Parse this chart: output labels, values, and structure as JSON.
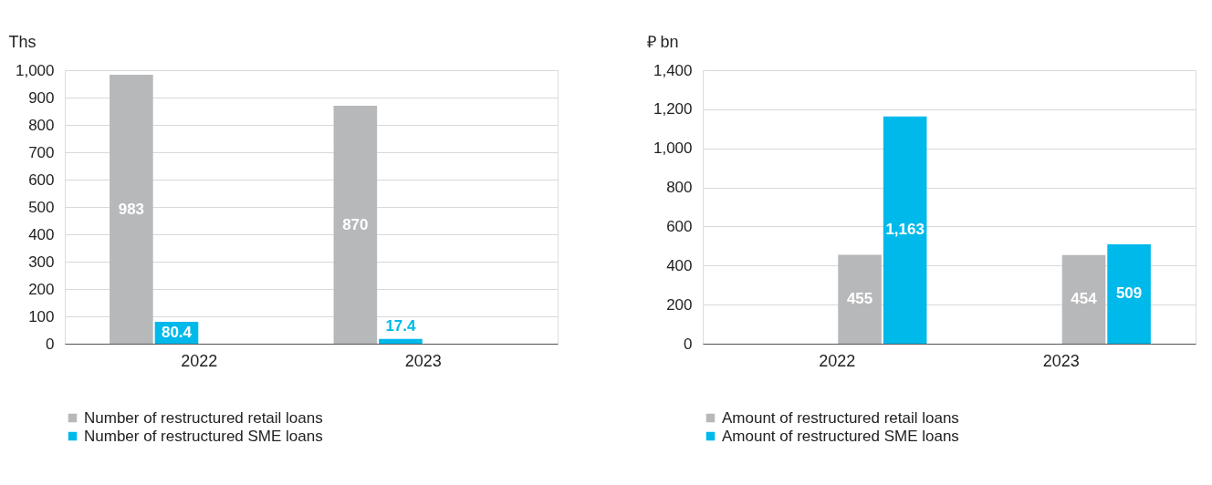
{
  "chart_data": [
    {
      "type": "bar",
      "ylabel": "Ths",
      "categories": [
        "2022",
        "2023"
      ],
      "ylim": [
        0,
        1000
      ],
      "yticks": [
        0,
        100,
        200,
        300,
        400,
        500,
        600,
        700,
        800,
        900,
        {
          "value": 1000,
          "label": "1,000"
        }
      ],
      "grid": "y",
      "legend": "bottom",
      "series": [
        {
          "name": "Number of restructured retail loans",
          "color": "#b7b8ba",
          "values": [
            983,
            870
          ],
          "value_labels": [
            "983",
            "870"
          ]
        },
        {
          "name": "Number of restructured SME loans",
          "color": "#00b9eb",
          "values": [
            80.4,
            17.4
          ],
          "value_labels": [
            "80.4",
            "17.4"
          ]
        }
      ]
    },
    {
      "type": "bar",
      "ylabel": "₽ bn",
      "categories": [
        "2022",
        "2023"
      ],
      "ylim": [
        0,
        1400
      ],
      "yticks": [
        0,
        200,
        400,
        600,
        800,
        {
          "value": 1000,
          "label": "1,000"
        },
        {
          "value": 1200,
          "label": "1,200"
        },
        {
          "value": 1400,
          "label": "1,400"
        }
      ],
      "grid": "y",
      "legend": "bottom",
      "series": [
        {
          "name": "Amount of restructured retail loans",
          "color": "#b7b8ba",
          "values": [
            455,
            454
          ],
          "value_labels": [
            "455",
            "454"
          ]
        },
        {
          "name": "Amount of restructured SME loans",
          "color": "#00b9eb",
          "values": [
            1163,
            509
          ],
          "value_labels": [
            "1,163",
            "509"
          ]
        }
      ]
    }
  ]
}
